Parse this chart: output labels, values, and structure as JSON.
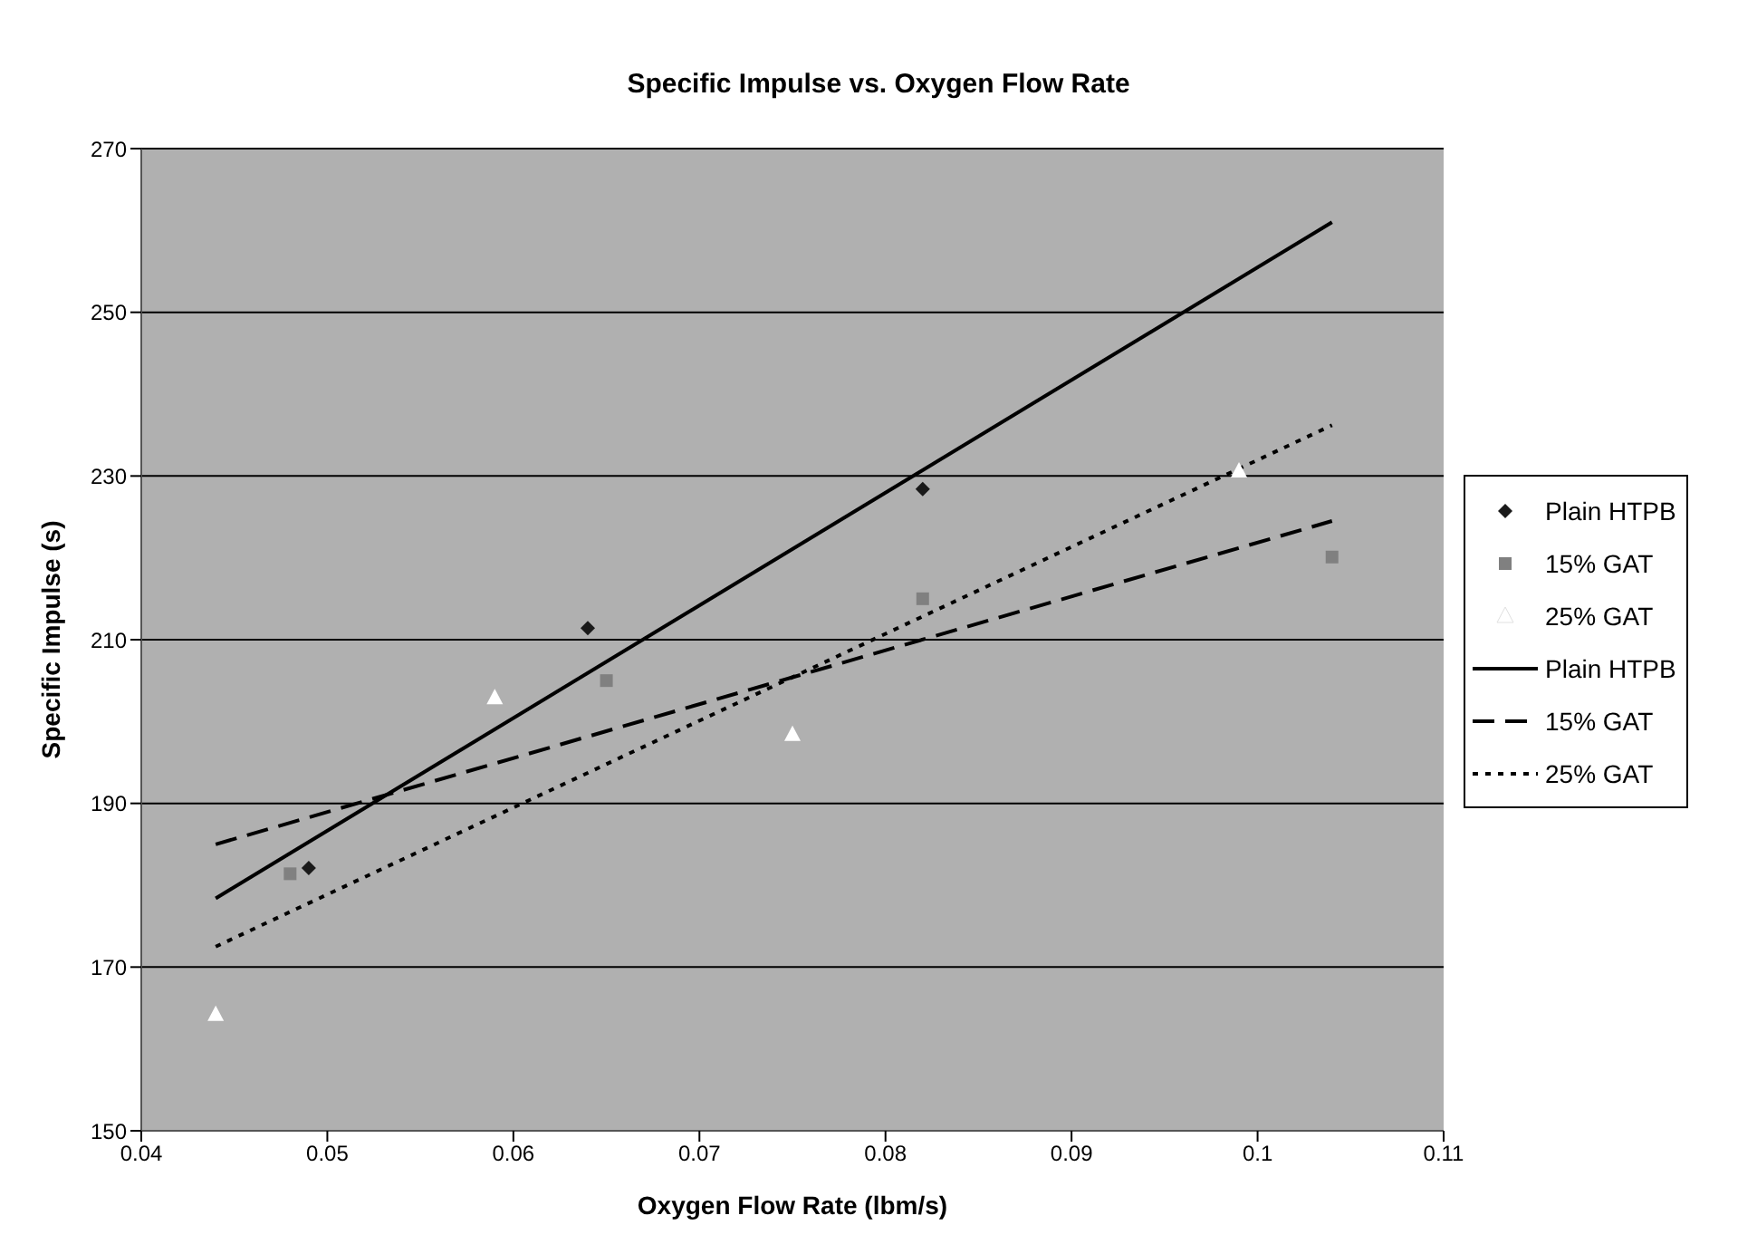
{
  "chart_data": {
    "type": "scatter",
    "title": "Specific Impulse vs. Oxygen Flow Rate",
    "xlabel": "Oxygen Flow Rate (lbm/s)",
    "ylabel": "Specific Impulse (s)",
    "xlim": [
      0.04,
      0.11
    ],
    "xticks": [
      0.04,
      0.05,
      0.06,
      0.07,
      0.08,
      0.09,
      0.1,
      0.11
    ],
    "ylim": [
      150,
      270
    ],
    "yticks": [
      150,
      170,
      190,
      210,
      230,
      250,
      270
    ],
    "grid": "y",
    "legend": "right",
    "series": [
      {
        "name": "Plain HTPB",
        "marker": "diamond",
        "color": "#1a1a1a",
        "x": [
          0.049,
          0.064,
          0.082
        ],
        "values": [
          182.1,
          211.4,
          228.4
        ]
      },
      {
        "name": "15% GAT",
        "marker": "square",
        "color": "#808080",
        "x": [
          0.048,
          0.065,
          0.082,
          0.104
        ],
        "values": [
          181.4,
          205.0,
          215.0,
          220.1
        ]
      },
      {
        "name": "25% GAT",
        "marker": "triangle",
        "color": "#ffffff",
        "x": [
          0.044,
          0.059,
          0.075,
          0.099
        ],
        "values": [
          164.2,
          202.9,
          198.4,
          230.6
        ]
      },
      {
        "name": "Plain HTPB",
        "type": "line",
        "marker": "none",
        "line_style": "solid",
        "color": "#000000",
        "x": [
          0.044,
          0.104
        ],
        "values": [
          178.4,
          261.0
        ]
      },
      {
        "name": "15% GAT",
        "type": "line",
        "marker": "none",
        "line_style": "dashed",
        "color": "#000000",
        "x": [
          0.044,
          0.104
        ],
        "values": [
          185.0,
          224.5
        ]
      },
      {
        "name": "25% GAT",
        "type": "line",
        "marker": "none",
        "line_style": "dotted",
        "color": "#000000",
        "x": [
          0.044,
          0.104
        ],
        "values": [
          172.5,
          236.2
        ]
      }
    ]
  }
}
